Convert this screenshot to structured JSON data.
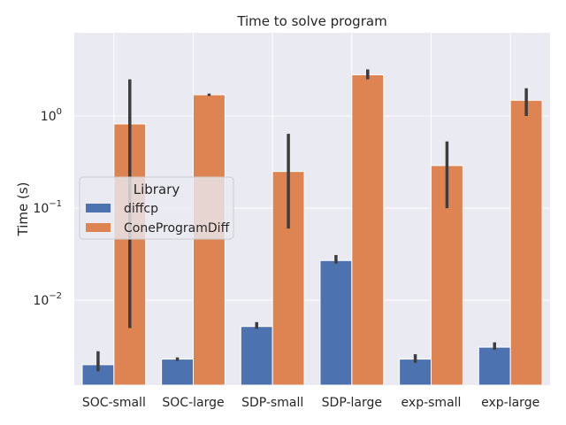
{
  "chart_data": {
    "type": "bar",
    "title": "Time to solve program",
    "xlabel": "",
    "ylabel": "Time (s)",
    "yscale": "log",
    "ylim": [
      0.0012,
      8.0
    ],
    "yticks": [
      {
        "value": 0.01,
        "base": "10",
        "exp": "−2"
      },
      {
        "value": 0.1,
        "base": "10",
        "exp": "−1"
      },
      {
        "value": 1,
        "base": "10",
        "exp": "0"
      }
    ],
    "grid": true,
    "legend": {
      "title": "Library",
      "placement": "center-left"
    },
    "categories": [
      "SOC-small",
      "SOC-large",
      "SDP-small",
      "SDP-large",
      "exp-small",
      "exp-large"
    ],
    "series": [
      {
        "name": "diffcp",
        "color": "#4c72b0",
        "values": [
          0.002,
          0.0023,
          0.0052,
          0.027,
          0.0023,
          0.0031
        ],
        "ci_low": [
          0.0017,
          0.0022,
          0.0049,
          0.025,
          0.0021,
          0.0029
        ],
        "ci_high": [
          0.0028,
          0.0024,
          0.0058,
          0.031,
          0.0026,
          0.0035
        ]
      },
      {
        "name": "ConeProgramDiff",
        "color": "#dd8452",
        "values": [
          0.82,
          1.7,
          0.25,
          2.8,
          0.29,
          1.48
        ],
        "ci_low": [
          0.005,
          1.65,
          0.06,
          2.5,
          0.1,
          1.0
        ],
        "ci_high": [
          2.5,
          1.75,
          0.64,
          3.2,
          0.53,
          2.0
        ]
      }
    ]
  }
}
